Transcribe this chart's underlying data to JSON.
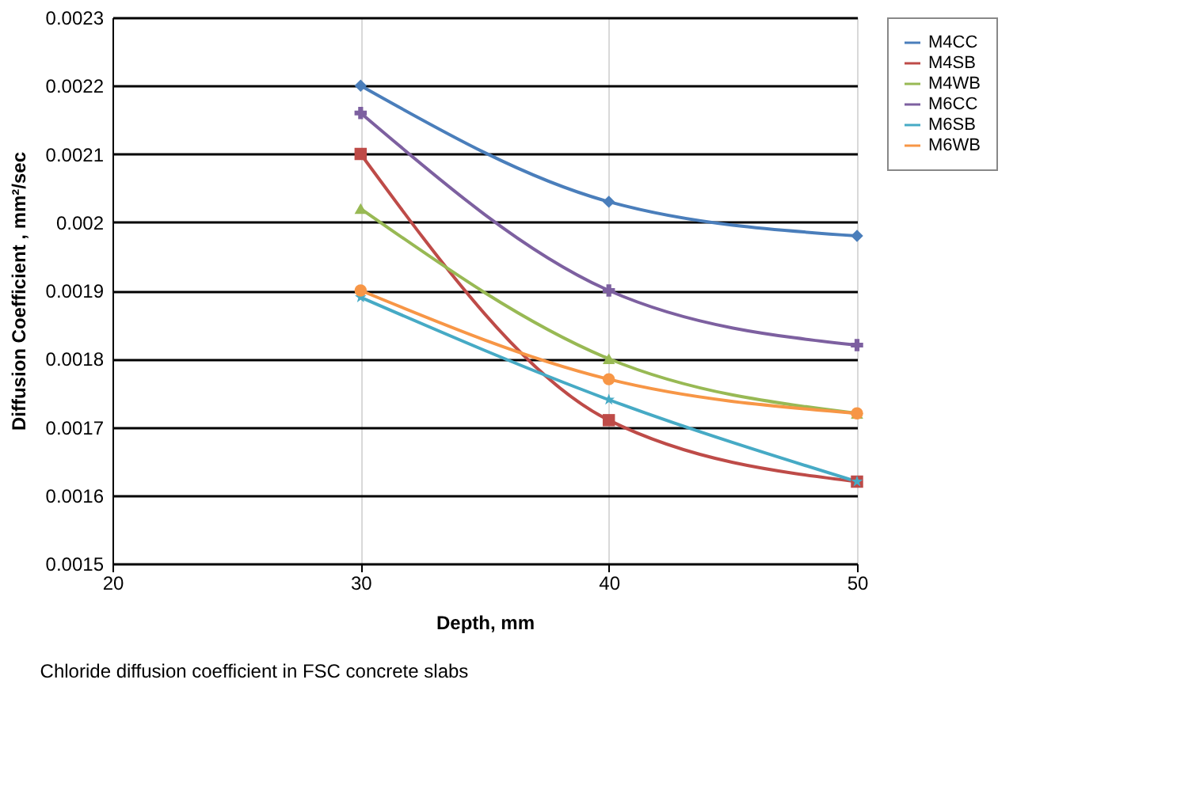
{
  "chart_data": {
    "type": "line",
    "xlabel": "Depth, mm",
    "ylabel": "Diffusion Coefficient , mm²/sec",
    "annotations": [
      "Chloride diffusion coefficient in FSC concrete slabs"
    ],
    "x": [
      30,
      40,
      50
    ],
    "series": [
      {
        "name": "M4CC",
        "color": "#4a7ebb",
        "marker": "diamond",
        "values": [
          0.0022,
          0.00203,
          0.00198
        ]
      },
      {
        "name": "M4SB",
        "color": "#be4b48",
        "marker": "square",
        "values": [
          0.0021,
          0.00171,
          0.00162
        ]
      },
      {
        "name": "M4WB",
        "color": "#98b954",
        "marker": "triangle",
        "values": [
          0.00202,
          0.0018,
          0.00172
        ]
      },
      {
        "name": "M6CC",
        "color": "#7d60a0",
        "marker": "cross",
        "values": [
          0.00216,
          0.0019,
          0.00182
        ]
      },
      {
        "name": "M6SB",
        "color": "#46aac5",
        "marker": "star",
        "values": [
          0.00189,
          0.00174,
          0.00162
        ]
      },
      {
        "name": "M6WB",
        "color": "#f79646",
        "marker": "circle",
        "values": [
          0.0019,
          0.00177,
          0.00172
        ]
      }
    ],
    "xlim": [
      20,
      50
    ],
    "xticks": [
      20,
      30,
      40,
      50
    ],
    "ylim": [
      0.0015,
      0.0023
    ],
    "yticks": [
      0.0015,
      0.0016,
      0.0017,
      0.0018,
      0.0019,
      0.002,
      0.0021,
      0.0022,
      0.0023
    ],
    "grid": true,
    "legend": "right",
    "line_style": "solid"
  }
}
